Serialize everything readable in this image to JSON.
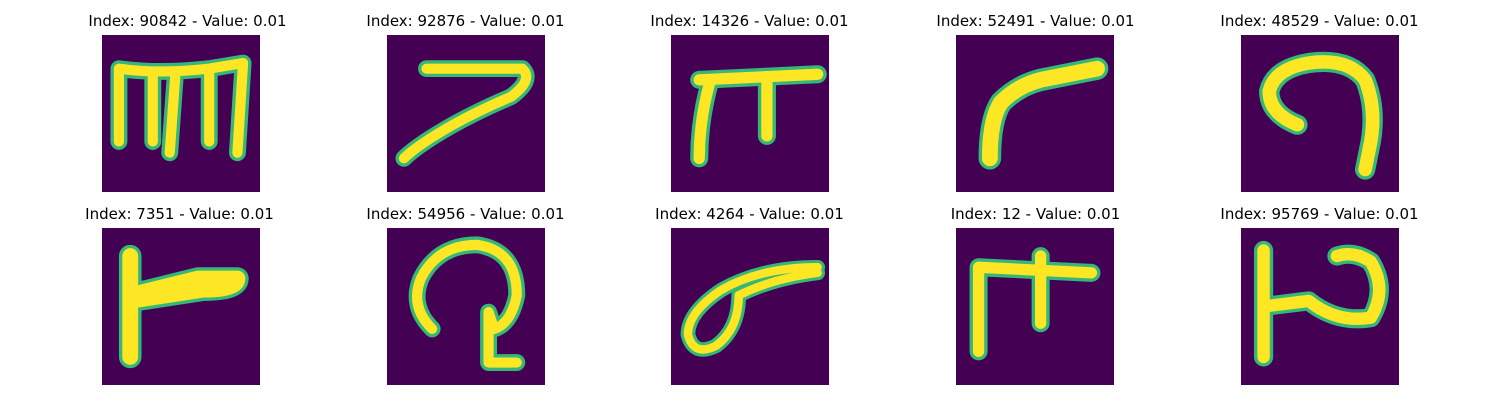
{
  "panels": [
    {
      "title": "Index: 90842 - Value: 0.01",
      "glyph": "glyph-m"
    },
    {
      "title": "Index: 92876 - Value: 0.01",
      "glyph": "glyph-7"
    },
    {
      "title": "Index: 14326 - Value: 0.01",
      "glyph": "glyph-pi"
    },
    {
      "title": "Index: 52491 - Value: 0.01",
      "glyph": "glyph-r"
    },
    {
      "title": "Index: 48529 - Value: 0.01",
      "glyph": "glyph-hook"
    },
    {
      "title": "Index: 7351 - Value: 0.01",
      "glyph": "glyph-flag"
    },
    {
      "title": "Index: 54956 - Value: 0.01",
      "glyph": "glyph-loop-hook"
    },
    {
      "title": "Index: 4264 - Value: 0.01",
      "glyph": "glyph-loop"
    },
    {
      "title": "Index: 12 - Value: 0.01",
      "glyph": "glyph-e"
    },
    {
      "title": "Index: 95769 - Value: 0.01",
      "glyph": "glyph-h"
    }
  ],
  "colors": {
    "background": "#440154",
    "stroke_core": "#fde725",
    "stroke_edge": "#35b779"
  }
}
